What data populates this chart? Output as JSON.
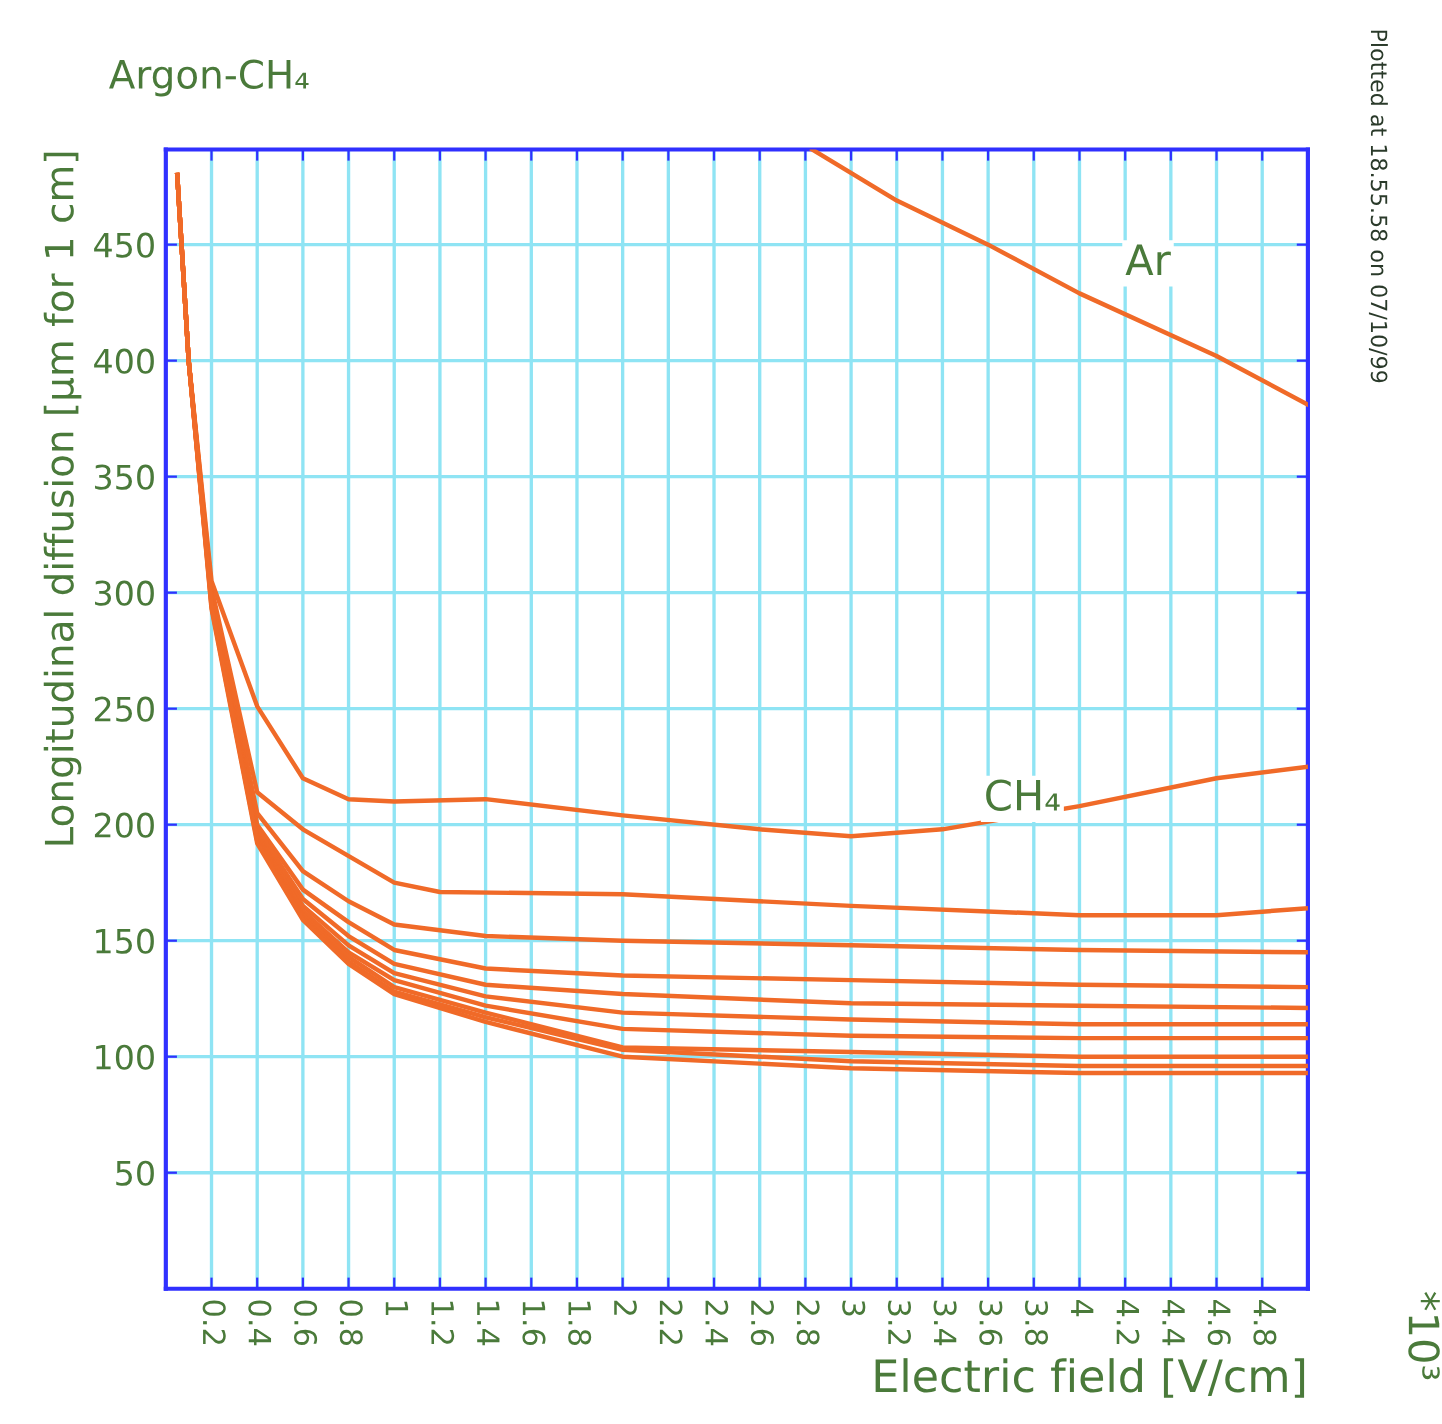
{
  "chart_data": {
    "type": "line",
    "title": "Argon-CH₄",
    "xlabel": "Electric field [V/cm]",
    "ylabel": "Longitudinal diffusion [μm for 1 cm]",
    "xlim": [
      0,
      5
    ],
    "ylim": [
      0,
      491
    ],
    "xticks": [
      0.2,
      0.4,
      0.6,
      0.8,
      1,
      1.2,
      1.4,
      1.6,
      1.8,
      2,
      2.2,
      2.4,
      2.6,
      2.8,
      3,
      3.2,
      3.4,
      3.6,
      3.8,
      4,
      4.2,
      4.4,
      4.6,
      4.8
    ],
    "yticks": [
      50,
      100,
      150,
      200,
      250,
      300,
      350,
      400,
      450
    ],
    "grid": true,
    "marker": "none",
    "line_style": "solid",
    "annotations": [
      "*10³",
      "Plotted at 18.55.58 on 07/10/99"
    ],
    "series": [
      {
        "name": "Ar",
        "color": "#f06a28",
        "x": [
          2.83,
          3.2,
          3.6,
          4.0,
          4.6,
          5.0
        ],
        "values": [
          491,
          469,
          450,
          429,
          402,
          381
        ]
      },
      {
        "name": "CH₄",
        "color": "#f06a28",
        "x": [
          0.05,
          0.1,
          0.2,
          0.4,
          0.6,
          0.8,
          1.0,
          1.4,
          2.0,
          2.6,
          3.0,
          3.4,
          4.0,
          4.6,
          5.0
        ],
        "values": [
          480,
          400,
          305,
          251,
          220,
          211,
          210,
          211,
          204,
          198,
          195,
          198,
          208,
          220,
          225
        ]
      },
      {
        "color": "#f06a28",
        "x": [
          0.05,
          0.1,
          0.2,
          0.4,
          0.6,
          1.0,
          1.2,
          2.0,
          3.0,
          4.0,
          4.6,
          5.0
        ],
        "values": [
          480,
          400,
          302,
          214,
          198,
          175,
          171,
          170,
          165,
          161,
          161,
          164
        ]
      },
      {
        "color": "#f06a28",
        "x": [
          0.05,
          0.1,
          0.2,
          0.4,
          0.6,
          0.8,
          1.0,
          1.4,
          2.0,
          3.0,
          4.0,
          5.0
        ],
        "values": [
          480,
          400,
          300,
          205,
          180,
          167,
          157,
          152,
          150,
          148,
          146,
          145
        ]
      },
      {
        "color": "#f06a28",
        "x": [
          0.05,
          0.1,
          0.2,
          0.4,
          0.6,
          0.8,
          1.0,
          1.4,
          2.0,
          3.0,
          4.0,
          5.0
        ],
        "values": [
          480,
          400,
          299,
          200,
          172,
          158,
          146,
          138,
          135,
          133,
          131,
          130
        ]
      },
      {
        "color": "#f06a28",
        "x": [
          0.05,
          0.1,
          0.2,
          0.4,
          0.6,
          0.8,
          1.0,
          1.4,
          2.0,
          3.0,
          4.0,
          5.0
        ],
        "values": [
          480,
          400,
          298,
          198,
          168,
          152,
          140,
          131,
          127,
          123,
          122,
          121
        ]
      },
      {
        "color": "#f06a28",
        "x": [
          0.05,
          0.1,
          0.2,
          0.4,
          0.6,
          0.8,
          1.0,
          1.4,
          2.0,
          3.0,
          4.0,
          5.0
        ],
        "values": [
          480,
          400,
          297,
          196,
          165,
          148,
          136,
          126,
          119,
          116,
          114,
          114
        ]
      },
      {
        "color": "#f06a28",
        "x": [
          0.05,
          0.1,
          0.2,
          0.4,
          0.6,
          0.8,
          1.0,
          1.4,
          2.0,
          3.0,
          4.0,
          5.0
        ],
        "values": [
          480,
          400,
          296,
          195,
          163,
          145,
          133,
          122,
          112,
          109,
          108,
          108
        ]
      },
      {
        "color": "#f06a28",
        "x": [
          0.05,
          0.1,
          0.2,
          0.4,
          0.6,
          0.8,
          1.0,
          1.4,
          2.0,
          3.0,
          4.0,
          5.0
        ],
        "values": [
          480,
          400,
          295,
          194,
          161,
          143,
          130,
          119,
          104,
          102,
          100,
          100
        ]
      },
      {
        "color": "#f06a28",
        "x": [
          0.05,
          0.1,
          0.2,
          0.4,
          0.6,
          0.8,
          1.0,
          1.4,
          2.0,
          2.6,
          3.0,
          4.0,
          5.0
        ],
        "values": [
          480,
          400,
          294,
          193,
          160,
          141,
          128,
          117,
          103,
          100,
          98,
          96,
          96
        ]
      },
      {
        "color": "#f06a28",
        "x": [
          0.05,
          0.1,
          0.2,
          0.4,
          0.6,
          0.8,
          1.0,
          1.4,
          2.0,
          3.0,
          4.0,
          5.0
        ],
        "values": [
          480,
          400,
          293,
          192,
          159,
          140,
          127,
          115,
          100,
          95,
          93,
          93
        ]
      }
    ]
  }
}
